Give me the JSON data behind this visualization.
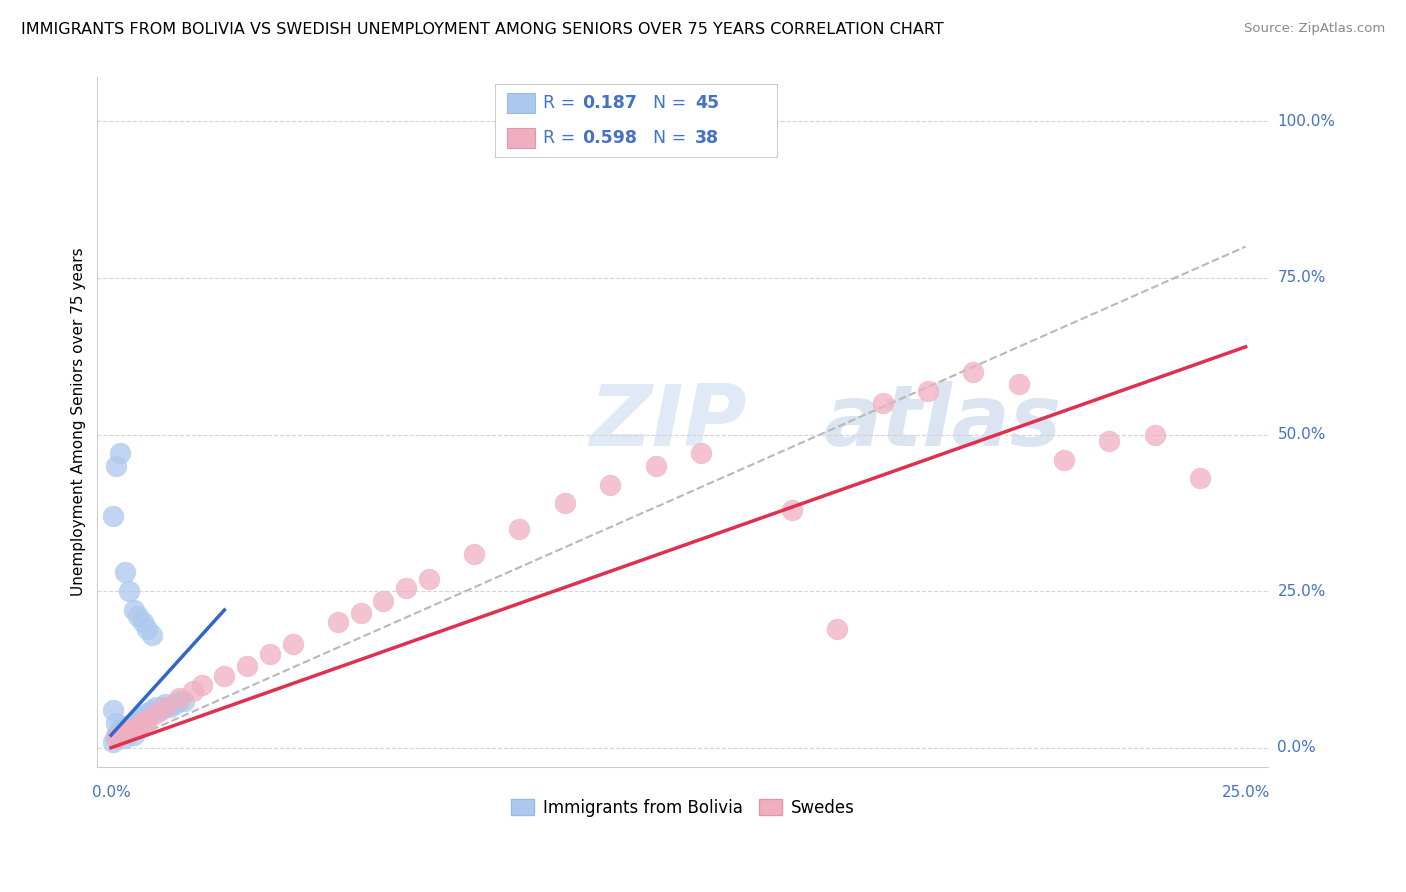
{
  "title": "IMMIGRANTS FROM BOLIVIA VS SWEDISH UNEMPLOYMENT AMONG SENIORS OVER 75 YEARS CORRELATION CHART",
  "source": "Source: ZipAtlas.com",
  "ylabel": "Unemployment Among Seniors over 75 years",
  "color_blue": "#adc8ee",
  "color_pink": "#f0afc0",
  "color_blue_line": "#3366cc",
  "color_pink_line": "#e03050",
  "color_grey_line": "#b8b8b8",
  "color_axis_label": "#4472c4",
  "watermark_zip": "ZIP",
  "watermark_atlas": "atlas",
  "blue_x": [
    0.0005,
    0.001,
    0.001,
    0.0015,
    0.002,
    0.002,
    0.002,
    0.003,
    0.003,
    0.003,
    0.004,
    0.004,
    0.005,
    0.005,
    0.006,
    0.006,
    0.007,
    0.007,
    0.008,
    0.008,
    0.009,
    0.009,
    0.01,
    0.01,
    0.011,
    0.012,
    0.013,
    0.014,
    0.015,
    0.016,
    0.0005,
    0.001,
    0.002,
    0.003,
    0.004,
    0.005,
    0.006,
    0.007,
    0.008,
    0.009,
    0.0005,
    0.001,
    0.002,
    0.003,
    0.005
  ],
  "blue_y": [
    0.01,
    0.015,
    0.02,
    0.018,
    0.022,
    0.025,
    0.03,
    0.025,
    0.03,
    0.035,
    0.03,
    0.035,
    0.035,
    0.04,
    0.04,
    0.045,
    0.045,
    0.05,
    0.048,
    0.055,
    0.055,
    0.06,
    0.06,
    0.065,
    0.06,
    0.07,
    0.065,
    0.07,
    0.075,
    0.075,
    0.37,
    0.45,
    0.47,
    0.28,
    0.25,
    0.22,
    0.21,
    0.2,
    0.19,
    0.18,
    0.06,
    0.04,
    0.025,
    0.015,
    0.02
  ],
  "pink_x": [
    0.001,
    0.002,
    0.003,
    0.004,
    0.005,
    0.006,
    0.007,
    0.008,
    0.01,
    0.012,
    0.015,
    0.018,
    0.02,
    0.025,
    0.03,
    0.035,
    0.04,
    0.05,
    0.055,
    0.06,
    0.065,
    0.07,
    0.08,
    0.09,
    0.1,
    0.11,
    0.12,
    0.13,
    0.15,
    0.16,
    0.17,
    0.18,
    0.19,
    0.2,
    0.21,
    0.22,
    0.23,
    0.24
  ],
  "pink_y": [
    0.015,
    0.02,
    0.025,
    0.028,
    0.03,
    0.035,
    0.04,
    0.045,
    0.055,
    0.065,
    0.08,
    0.09,
    0.1,
    0.115,
    0.13,
    0.15,
    0.165,
    0.2,
    0.215,
    0.235,
    0.255,
    0.27,
    0.31,
    0.35,
    0.39,
    0.42,
    0.45,
    0.47,
    0.38,
    0.19,
    0.55,
    0.57,
    0.6,
    0.58,
    0.46,
    0.49,
    0.5,
    0.43
  ],
  "blue_line_x0": 0.0,
  "blue_line_x1": 0.025,
  "blue_line_y0": 0.02,
  "blue_line_y1": 0.22,
  "pink_line_x0": 0.0,
  "pink_line_x1": 0.25,
  "pink_line_y0": 0.0,
  "pink_line_y1": 0.64,
  "grey_line_x0": 0.0,
  "grey_line_x1": 0.25,
  "grey_line_y0": 0.0,
  "grey_line_y1": 0.8,
  "xlim": [
    0.0,
    0.25
  ],
  "ylim": [
    0.0,
    1.05
  ],
  "ytick_vals": [
    0.0,
    0.25,
    0.5,
    0.75,
    1.0
  ],
  "ytick_labels": [
    "0.0%",
    "25.0%",
    "50.0%",
    "75.0%",
    "100.0%"
  ],
  "xtick_left_label": "0.0%",
  "xtick_right_label": "25.0%",
  "legend_label1": "Immigrants from Bolivia",
  "legend_label2": "Swedes"
}
